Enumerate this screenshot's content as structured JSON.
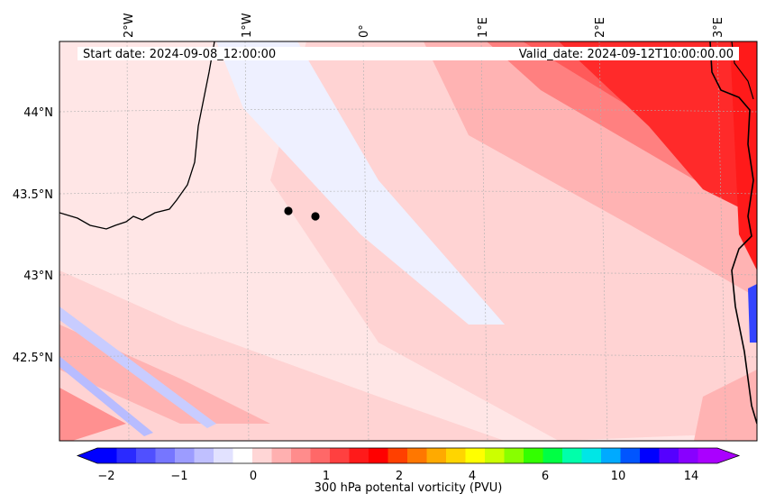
{
  "map": {
    "start_label": "Start date: 2024-09-08_12:00:00",
    "valid_label": "Valid_date: 2024-09-12T10:00:00.00",
    "lon_ticks": [
      "2°W",
      "1°W",
      "0°",
      "1°E",
      "2°E",
      "3°E"
    ],
    "lat_ticks": [
      "44°N",
      "43.5°N",
      "43°N",
      "42.5°N"
    ],
    "markers": [
      {
        "name": "point-a",
        "lon": -0.65,
        "lat": 43.39
      },
      {
        "name": "point-b",
        "lon": -0.43,
        "lat": 43.36
      }
    ],
    "colors": {
      "ocean_bg": "#ffe6e6",
      "light_pink": "#ffd0d0",
      "pink": "#ffb0b0",
      "red_light": "#ff6b6b",
      "red": "#ff2a2a",
      "blue_pale": "#eef0ff",
      "coast": "#000000"
    }
  },
  "colorbar": {
    "title": "300 hPa potental vorticity (PVU)",
    "tick_labels": [
      "−2",
      "−1",
      "0",
      "1",
      "2",
      "4",
      "6",
      "10",
      "14"
    ],
    "colors": [
      "#0000ff",
      "#2a2aff",
      "#5050ff",
      "#7676ff",
      "#9c9cff",
      "#c0c0ff",
      "#e2e2ff",
      "#ffffff",
      "#ffd6d6",
      "#ffb0b0",
      "#ff8c8c",
      "#ff6868",
      "#ff4040",
      "#ff1a1a",
      "#ff0000",
      "#ff4000",
      "#ff7700",
      "#ffaa00",
      "#ffd500",
      "#ffff00",
      "#ccff00",
      "#88ff00",
      "#33ff00",
      "#00ff44",
      "#00ffaa",
      "#00e6e6",
      "#00aaff",
      "#0055ff",
      "#0000ff",
      "#5500ff",
      "#8800ff",
      "#aa00ff"
    ]
  }
}
